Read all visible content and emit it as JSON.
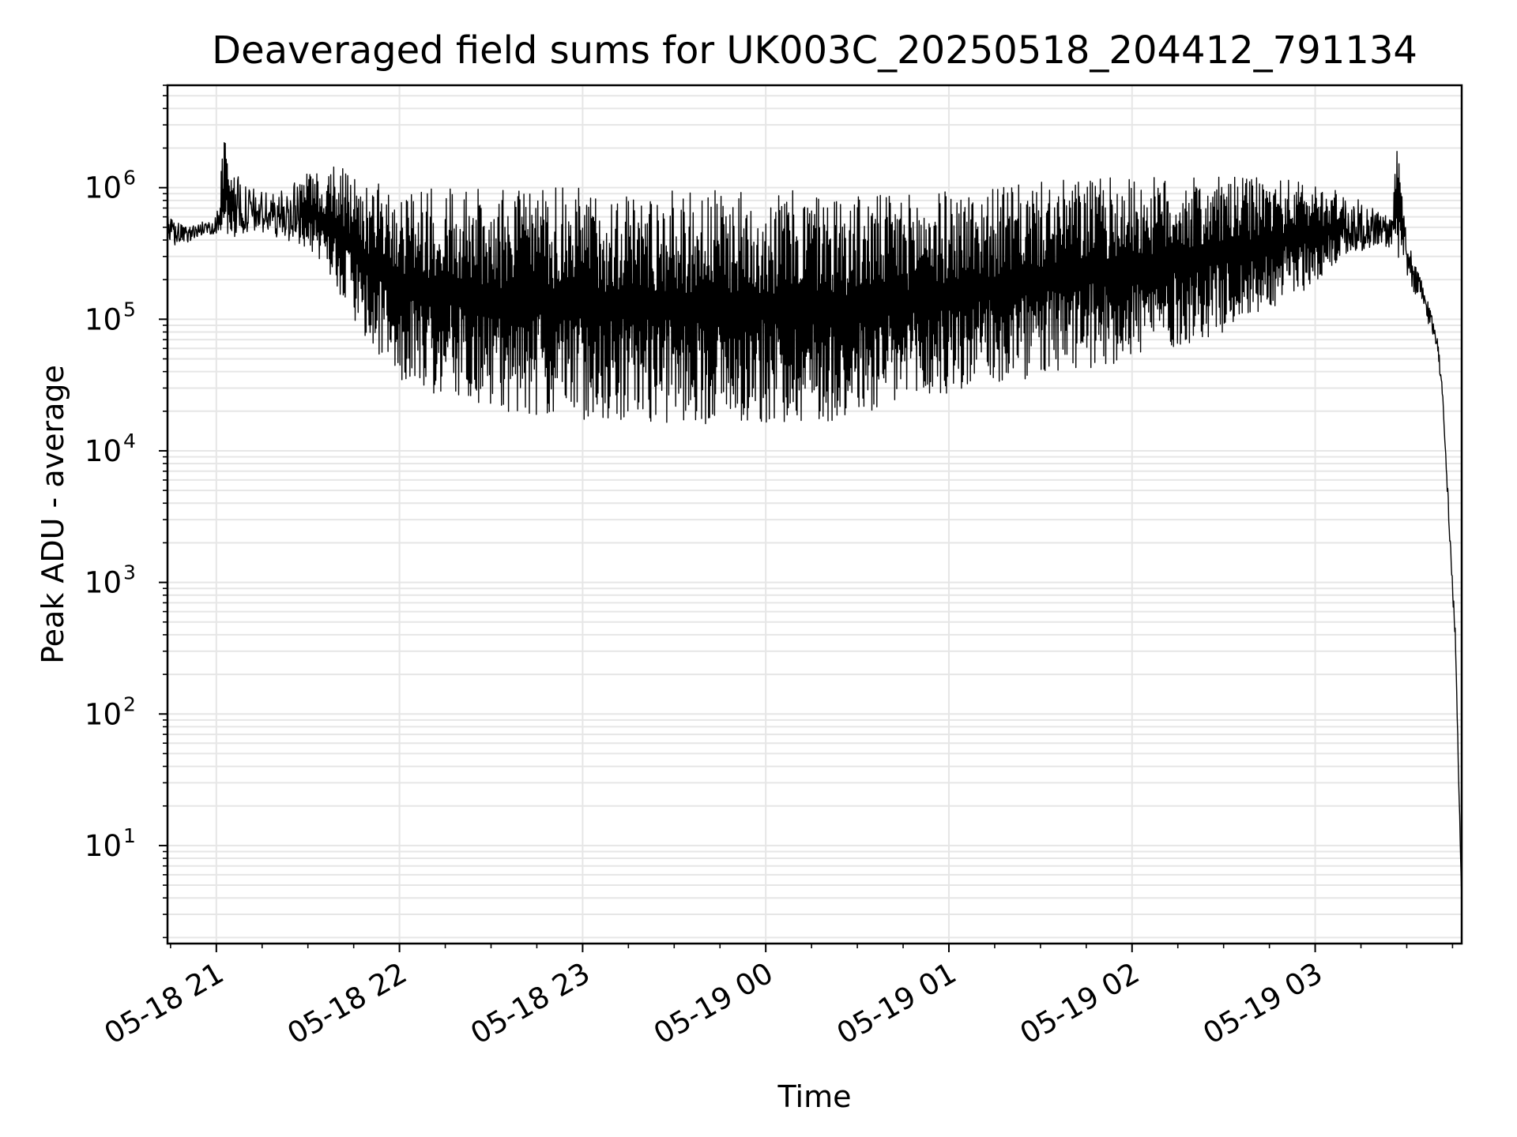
{
  "chart_data": {
    "type": "line",
    "title": "Deaveraged field sums for UK003C_20250518_204412_791134",
    "xlabel": "Time",
    "ylabel": "Peak ADU - average",
    "yscale": "log",
    "xlim": [
      "2025-05-18 20:44",
      "2025-05-19 03:48"
    ],
    "ylim": [
      1.8,
      6000000
    ],
    "grid": true,
    "legend": "none",
    "line_color": "#000000",
    "grid_color": "#e6e6e6",
    "x_ticks": [
      {
        "value": "2025-05-18 21:00",
        "label": "05-18 21"
      },
      {
        "value": "2025-05-18 22:00",
        "label": "05-18 22"
      },
      {
        "value": "2025-05-18 23:00",
        "label": "05-18 23"
      },
      {
        "value": "2025-05-19 00:00",
        "label": "05-19 00"
      },
      {
        "value": "2025-05-19 01:00",
        "label": "05-19 01"
      },
      {
        "value": "2025-05-19 02:00",
        "label": "05-19 02"
      },
      {
        "value": "2025-05-19 03:00",
        "label": "05-19 03"
      }
    ],
    "y_ticks": [
      {
        "value": 10,
        "base": "10",
        "exp": "1"
      },
      {
        "value": 100,
        "base": "10",
        "exp": "2"
      },
      {
        "value": 1000,
        "base": "10",
        "exp": "3"
      },
      {
        "value": 10000,
        "base": "10",
        "exp": "4"
      },
      {
        "value": 100000,
        "base": "10",
        "exp": "5"
      },
      {
        "value": 1000000,
        "base": "10",
        "exp": "6"
      }
    ],
    "series": [
      {
        "x": [
          "2025-05-18 20:44",
          "2025-05-18 20:50",
          "2025-05-18 20:55",
          "2025-05-18 21:00",
          "2025-05-18 21:03",
          "2025-05-18 21:05",
          "2025-05-18 21:10",
          "2025-05-18 21:20",
          "2025-05-18 21:30",
          "2025-05-18 21:35",
          "2025-05-18 21:40",
          "2025-05-18 21:45",
          "2025-05-18 21:50",
          "2025-05-18 22:00",
          "2025-05-18 22:15",
          "2025-05-18 22:30",
          "2025-05-18 22:45",
          "2025-05-18 23:00",
          "2025-05-18 23:15",
          "2025-05-18 23:30",
          "2025-05-18 23:45",
          "2025-05-19 00:00",
          "2025-05-19 00:15",
          "2025-05-19 00:30",
          "2025-05-19 00:45",
          "2025-05-19 01:00",
          "2025-05-19 01:15",
          "2025-05-19 01:30",
          "2025-05-19 01:45",
          "2025-05-19 02:00",
          "2025-05-19 02:15",
          "2025-05-19 02:30",
          "2025-05-19 02:45",
          "2025-05-19 03:00",
          "2025-05-19 03:10",
          "2025-05-19 03:20",
          "2025-05-19 03:25",
          "2025-05-19 03:27",
          "2025-05-19 03:30",
          "2025-05-19 03:35",
          "2025-05-19 03:38",
          "2025-05-19 03:40",
          "2025-05-19 03:42",
          "2025-05-19 03:44",
          "2025-05-19 03:46",
          "2025-05-19 03:47",
          "2025-05-19 03:48"
        ],
        "y_low": [
          350000,
          380000,
          420000,
          450000,
          350000,
          400000,
          450000,
          420000,
          350000,
          250000,
          150000,
          100000,
          60000,
          35000,
          25000,
          20000,
          18000,
          17000,
          17000,
          16000,
          16000,
          16000,
          16000,
          17000,
          20000,
          25000,
          30000,
          35000,
          40000,
          50000,
          60000,
          80000,
          120000,
          180000,
          300000,
          350000,
          350000,
          300000,
          200000,
          120000,
          80000,
          60000,
          20000,
          2000,
          300,
          30,
          3.8
        ],
        "y_high": [
          600000,
          500000,
          550000,
          600000,
          3000000,
          1400000,
          1000000,
          900000,
          1300000,
          1300000,
          1600000,
          1200000,
          1100000,
          1000000,
          1000000,
          1000000,
          1000000,
          1000000,
          950000,
          950000,
          950000,
          950000,
          950000,
          900000,
          900000,
          950000,
          1000000,
          1100000,
          1200000,
          1200000,
          1200000,
          1200000,
          1200000,
          1100000,
          900000,
          700000,
          600000,
          2300000,
          400000,
          200000,
          120000,
          80000,
          25000,
          3000,
          400,
          40,
          3.8
        ]
      }
    ]
  }
}
